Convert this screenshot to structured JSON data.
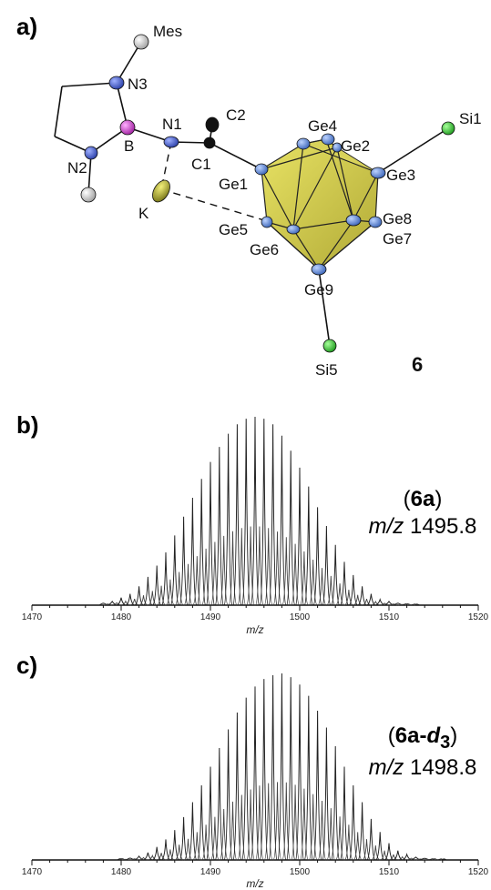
{
  "panels": {
    "a": "a)",
    "b": "b)",
    "c": "c)"
  },
  "structure": {
    "compound_number": "6",
    "atom_labels": [
      "Mes",
      "N3",
      "N1",
      "B",
      "N2",
      "C2",
      "C1",
      "K",
      "Ge4",
      "Ge2",
      "Ge1",
      "Ge3",
      "Si1",
      "Ge5",
      "Ge6",
      "Ge8",
      "Ge7",
      "Ge9",
      "Si5"
    ],
    "colors": {
      "nitrogen": "#3d56c8",
      "boron": "#c040c0",
      "carbon": "#111111",
      "potassium": "#9c9a22",
      "germanium": "#5b87d6",
      "silicon": "#2fbf2f",
      "substituent": "#d8d8d8",
      "cluster_fill": "#c9c230"
    }
  },
  "spectrum_b": {
    "name_prefix": "(",
    "name_bold": "6a",
    "name_suffix": ")",
    "mz_italic": "m/z",
    "mz_value": "1495.8"
  },
  "spectrum_c": {
    "name_prefix": "(",
    "name_bold": "6a-",
    "name_bold_italic": "d",
    "name_sub": "3",
    "name_suffix": ")",
    "mz_italic": "m/z",
    "mz_value": "1498.8"
  },
  "chart_data": [
    {
      "type": "line",
      "panel": "b",
      "xlabel": "m/z",
      "ylabel": "",
      "xlim": [
        1470,
        1520
      ],
      "ylim": [
        0,
        100
      ],
      "xticks": [
        "1470",
        "1480",
        "1490",
        "1500",
        "1510",
        "1520"
      ],
      "grid": false,
      "series": [
        {
          "x": [
            1478,
            1479,
            1480,
            1481,
            1482,
            1483,
            1484,
            1485,
            1486,
            1487,
            1488,
            1489,
            1490,
            1491,
            1492,
            1493,
            1494,
            1495,
            1496,
            1497,
            1498,
            1499,
            1500,
            1501,
            1502,
            1503,
            1504,
            1505,
            1506,
            1507,
            1508,
            1509,
            1510,
            1511,
            1512,
            1513
          ],
          "y": [
            1,
            2,
            4,
            6,
            10,
            15,
            21,
            28,
            37,
            47,
            57,
            67,
            76,
            84,
            91,
            96,
            99,
            100,
            99,
            96,
            90,
            82,
            73,
            63,
            52,
            42,
            32,
            23,
            16,
            10,
            6,
            3,
            2,
            1,
            0.5,
            0.3
          ]
        }
      ]
    },
    {
      "type": "line",
      "panel": "c",
      "xlabel": "m/z",
      "ylabel": "",
      "xlim": [
        1470,
        1520
      ],
      "ylim": [
        0,
        100
      ],
      "xticks": [
        "1470",
        "1480",
        "1490",
        "1500",
        "1510",
        "1520"
      ],
      "grid": false,
      "series": [
        {
          "x": [
            1480,
            1481,
            1482,
            1483,
            1484,
            1485,
            1486,
            1487,
            1488,
            1489,
            1490,
            1491,
            1492,
            1493,
            1494,
            1495,
            1496,
            1497,
            1498,
            1499,
            1500,
            1501,
            1502,
            1503,
            1504,
            1505,
            1506,
            1507,
            1508,
            1509,
            1510,
            1511,
            1512,
            1513,
            1514,
            1515,
            1516
          ],
          "y": [
            0.5,
            1,
            2,
            4,
            7,
            11,
            16,
            23,
            31,
            40,
            50,
            60,
            70,
            79,
            87,
            93,
            97,
            99,
            100,
            98,
            94,
            88,
            80,
            71,
            61,
            50,
            40,
            31,
            22,
            15,
            9,
            5,
            3,
            1.5,
            0.8,
            0.4,
            0.2
          ]
        }
      ]
    }
  ]
}
